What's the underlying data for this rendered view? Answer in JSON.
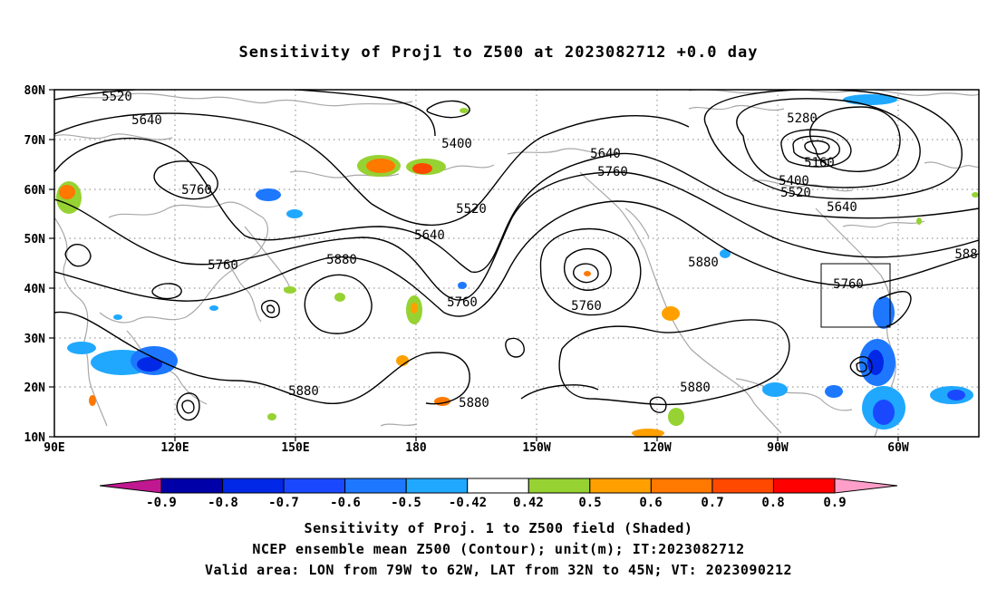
{
  "title": "Sensitivity of Proj1 to Z500 at 2023082712 +0.0 day",
  "map": {
    "lat_ticks": [
      "80N",
      "70N",
      "60N",
      "50N",
      "40N",
      "30N",
      "20N",
      "10N"
    ],
    "lon_ticks": [
      "90E",
      "120E",
      "150E",
      "180",
      "150W",
      "120W",
      "90W",
      "60W"
    ],
    "contour_labels": [
      {
        "text": "5520"
      },
      {
        "text": "5640"
      },
      {
        "text": "5760"
      },
      {
        "text": "5400"
      },
      {
        "text": "5640"
      },
      {
        "text": "5760"
      },
      {
        "text": "5280"
      },
      {
        "text": "5160"
      },
      {
        "text": "5400"
      },
      {
        "text": "5520"
      },
      {
        "text": "5640"
      },
      {
        "text": "5520"
      },
      {
        "text": "5640"
      },
      {
        "text": "5760"
      },
      {
        "text": "5880"
      },
      {
        "text": "5760"
      },
      {
        "text": "5760"
      },
      {
        "text": "5880"
      },
      {
        "text": "5760"
      },
      {
        "text": "588"
      },
      {
        "text": "5880"
      },
      {
        "text": "5880"
      },
      {
        "text": "5880"
      }
    ],
    "valid_box": {
      "lon_from": "79W",
      "lon_to": "62W",
      "lat_from": "32N",
      "lat_to": "45N"
    }
  },
  "colorbar": {
    "labels": [
      "-0.9",
      "-0.8",
      "-0.7",
      "-0.6",
      "-0.5",
      "-0.42",
      "0.42",
      "0.5",
      "0.6",
      "0.7",
      "0.8",
      "0.9"
    ],
    "colors": [
      "#0000a8",
      "#0028e6",
      "#1a48ff",
      "#1e78ff",
      "#20a8ff",
      "#ffffff",
      "#96d232",
      "#ffa000",
      "#ff7800",
      "#ff4800",
      "#ff0000"
    ],
    "low_extend_color": "#c01890",
    "high_extend_color": "#ff9ec8"
  },
  "footer": {
    "line1": "Sensitivity of Proj. 1 to Z500 field (Shaded)",
    "line2": "NCEP ensemble mean Z500 (Contour); unit(m); IT:2023082712",
    "line3": "Valid area: LON from 79W to 62W, LAT from 32N to 45N; VT: 2023090212"
  }
}
